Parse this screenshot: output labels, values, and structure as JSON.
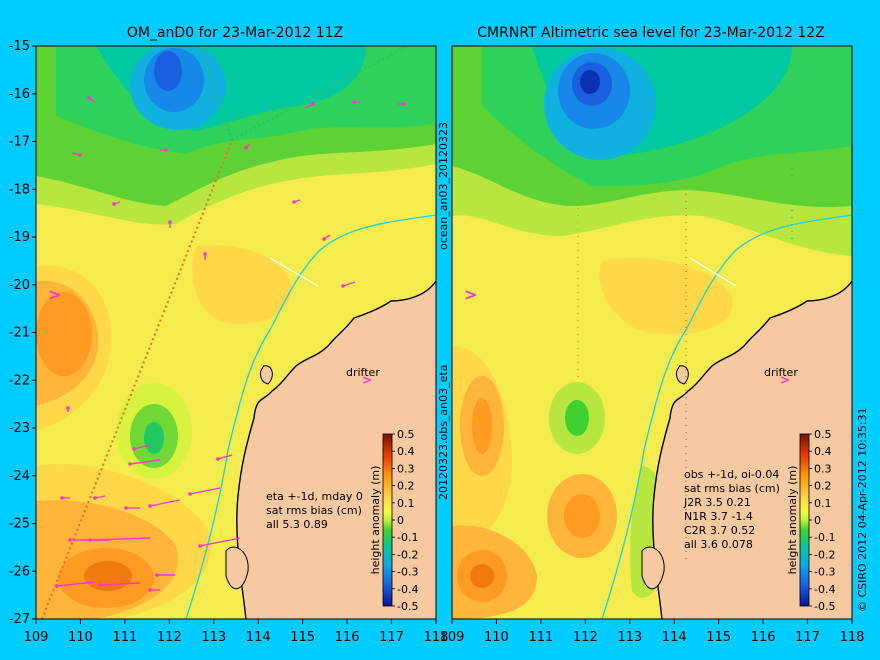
{
  "colors": {
    "page_background": "#00ccff",
    "land": "#f7c9a0",
    "coastline": "#000000",
    "isobath": "#20d0d8",
    "velocity_arrow": "#ff33cc",
    "drifter_marker": "#ff33cc",
    "transect": "#ffffff"
  },
  "labels": {
    "vertical_left": "20120323.obs_an03_eta",
    "vertical_right": "ocean_an03_20120323",
    "credit": "© CSIRO 2012  04-Apr-2012 10:35:31"
  },
  "chart_data": [
    {
      "type": "heatmap",
      "title": "OM_anD0 for 23-Mar-2012 11Z",
      "x_ticks": [
        "109",
        "110",
        "111",
        "112",
        "113",
        "114",
        "115",
        "116",
        "117",
        "118"
      ],
      "y_ticks": [
        "-15",
        "-16",
        "-17",
        "-18",
        "-19",
        "-20",
        "-21",
        "-22",
        "-23",
        "-24",
        "-25",
        "-26",
        "-27"
      ],
      "xlim": [
        109,
        118
      ],
      "ylim": [
        -27,
        -15
      ],
      "drifter_label": "drifter",
      "stats_lines": [
        "eta +-1d, mday 0",
        "sat rms bias (cm)",
        "all 5.3 0.89"
      ],
      "colorbar": {
        "label": "height anomaly (m)",
        "ticks": [
          "0.5",
          "0.4",
          "0.3",
          "0.2",
          "0.1",
          "0",
          "-0.1",
          "-0.2",
          "-0.3",
          "-0.4",
          "-0.5"
        ]
      }
    },
    {
      "type": "heatmap",
      "title": "CMRNRT Altimetric sea level  for 23-Mar-2012 12Z",
      "x_ticks": [
        "109",
        "110",
        "111",
        "112",
        "113",
        "114",
        "115",
        "116",
        "117",
        "118"
      ],
      "xlim": [
        109,
        118
      ],
      "ylim": [
        -27,
        -15
      ],
      "drifter_label": "drifter",
      "stats_lines": [
        "obs +-1d, oi-0.04",
        "sat rms bias (cm)",
        "J2R   3.5 0.21",
        "N1R   3.7 -1.4",
        "C2R   3.7 0.52",
        "all 3.6 0.078"
      ],
      "colorbar": {
        "label": "height anomaly (m)",
        "ticks": [
          "0.5",
          "0.4",
          "0.3",
          "0.2",
          "0.1",
          "0",
          "-0.1",
          "-0.2",
          "-0.3",
          "-0.4",
          "-0.5"
        ]
      }
    }
  ]
}
